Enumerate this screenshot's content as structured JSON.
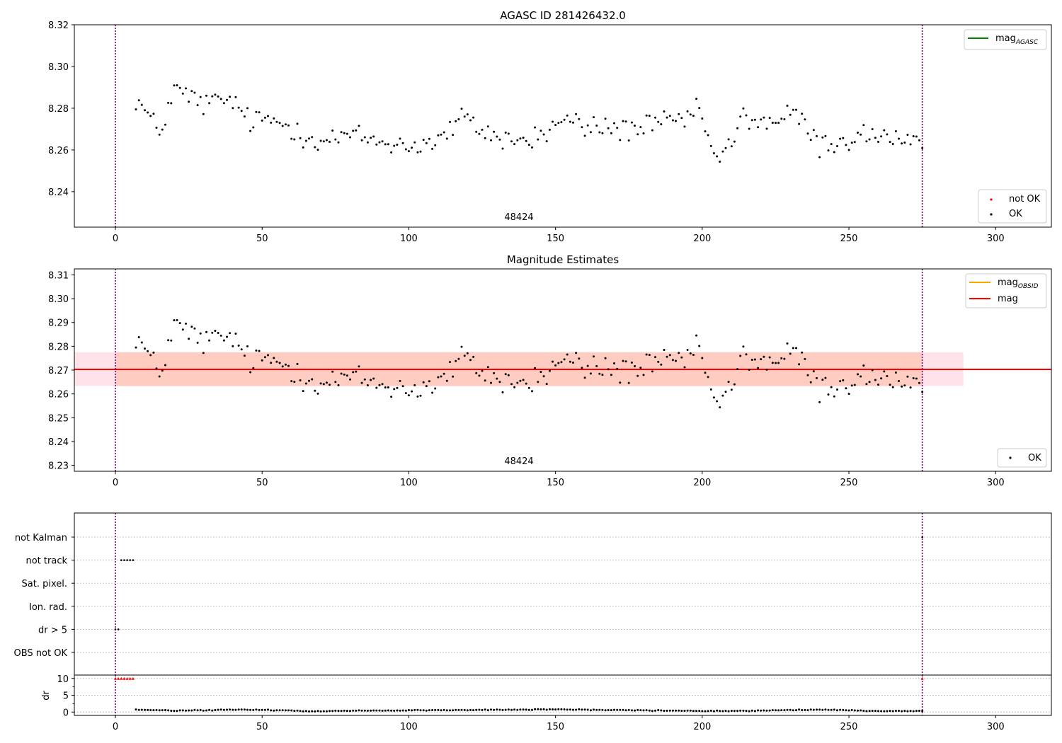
{
  "chart_data": [
    {
      "type": "scatter",
      "title": "AGASC ID 281426432.0",
      "xlim": [
        -14,
        319
      ],
      "ylim": [
        8.223,
        8.32
      ],
      "x_ticks": [
        0,
        50,
        100,
        150,
        200,
        250,
        300
      ],
      "y_ticks": [
        8.24,
        8.26,
        8.28,
        8.3,
        8.32
      ],
      "y_tick_labels": [
        "8.24",
        "8.26",
        "8.28",
        "8.30",
        "8.32"
      ],
      "vlines": [
        0,
        275
      ],
      "annotation": {
        "text": "48424",
        "x": 137,
        "y": 8.2255
      },
      "legends": [
        {
          "position": "upper right",
          "entries": [
            {
              "label": "mag",
              "sub": "AGASC",
              "color": "#008000",
              "marker": "line"
            }
          ]
        },
        {
          "position": "lower right",
          "entries": [
            {
              "label": "not OK",
              "color": "#ff0000",
              "marker": "dot"
            },
            {
              "label": "OK",
              "color": "#000000",
              "marker": "dot"
            }
          ]
        }
      ],
      "series": [
        {
          "name": "OK",
          "color": "#000000",
          "x_start": 7,
          "x_end": 275,
          "anchors": [
            [
              7,
              8.285
            ],
            [
              15,
              8.268
            ],
            [
              20,
              8.289
            ],
            [
              30,
              8.282
            ],
            [
              40,
              8.284
            ],
            [
              45,
              8.274
            ],
            [
              55,
              8.274
            ],
            [
              70,
              8.264
            ],
            [
              80,
              8.267
            ],
            [
              90,
              8.264
            ],
            [
              100,
              8.262
            ],
            [
              110,
              8.264
            ],
            [
              118,
              8.275
            ],
            [
              130,
              8.266
            ],
            [
              140,
              8.264
            ],
            [
              148,
              8.269
            ],
            [
              152,
              8.275
            ],
            [
              160,
              8.271
            ],
            [
              175,
              8.27
            ],
            [
              185,
              8.272
            ],
            [
              195,
              8.275
            ],
            [
              200,
              8.278
            ],
            [
              204,
              8.255
            ],
            [
              210,
              8.262
            ],
            [
              214,
              8.276
            ],
            [
              222,
              8.273
            ],
            [
              232,
              8.277
            ],
            [
              240,
              8.262
            ],
            [
              250,
              8.265
            ],
            [
              260,
              8.268
            ],
            [
              270,
              8.262
            ],
            [
              275,
              8.261
            ]
          ],
          "jitter": 0.006
        }
      ]
    },
    {
      "type": "scatter",
      "title": "Magnitude Estimates",
      "xlim": [
        -14,
        319
      ],
      "ylim": [
        8.2275,
        8.3125
      ],
      "x_ticks": [
        0,
        50,
        100,
        150,
        200,
        250,
        300
      ],
      "y_ticks": [
        8.23,
        8.24,
        8.25,
        8.26,
        8.27,
        8.28,
        8.29,
        8.3,
        8.31
      ],
      "y_tick_labels": [
        "8.23",
        "8.24",
        "8.25",
        "8.26",
        "8.27",
        "8.28",
        "8.29",
        "8.30",
        "8.31"
      ],
      "vlines": [
        0,
        275
      ],
      "annotation": {
        "text": "48424",
        "x": 137,
        "y": 8.2285
      },
      "hlines": [
        {
          "name": "mag_obsid",
          "y": 8.2703,
          "x0": -14,
          "x1": 289,
          "color": "#ffa500"
        },
        {
          "name": "mag",
          "y": 8.2703,
          "x0": -14,
          "x1": 319,
          "color": "#ff0000"
        }
      ],
      "bands": [
        {
          "y0": 8.2633,
          "y1": 8.2775,
          "x0": -14,
          "x1": 289,
          "color": "#ffc0cb",
          "opacity": 0.45
        },
        {
          "y0": 8.2633,
          "y1": 8.2775,
          "x0": 0,
          "x1": 275,
          "color": "#ffa07a",
          "opacity": 0.35
        }
      ],
      "legends": [
        {
          "position": "upper right",
          "entries": [
            {
              "label": "mag",
              "sub": "OBSID",
              "color": "#ffa500",
              "marker": "line"
            },
            {
              "label": "mag",
              "color": "#ff0000",
              "marker": "line"
            }
          ]
        },
        {
          "position": "lower right",
          "entries": [
            {
              "label": "OK",
              "color": "#000000",
              "marker": "dot"
            }
          ]
        }
      ]
    },
    {
      "type": "scatter",
      "title": "",
      "xlim": [
        -14,
        319
      ],
      "x_ticks": [
        0,
        50,
        100,
        150,
        200,
        250,
        300
      ],
      "flag_categories": [
        "not Kalman",
        "not track",
        "Sat. pixel.",
        "Ion. rad.",
        "dr > 5",
        "OBS not OK"
      ],
      "flag_points": [
        {
          "flag": "not track",
          "x": [
            2,
            3,
            4,
            5,
            6
          ],
          "color": "#000000"
        },
        {
          "flag": "dr > 5",
          "x": [
            0,
            1
          ],
          "color": "#000000"
        },
        {
          "flag": "not Kalman",
          "x": [
            275
          ],
          "color": "#000000"
        }
      ],
      "vlines": [
        0,
        275
      ]
    },
    {
      "type": "scatter",
      "title": "",
      "ylabel": "dr",
      "xlim": [
        -14,
        319
      ],
      "ylim": [
        -1,
        11
      ],
      "x_ticks": [
        0,
        50,
        100,
        150,
        200,
        250,
        300
      ],
      "x_tick_labels": [
        "0",
        "50",
        "100",
        "150",
        "200",
        "250",
        "300"
      ],
      "y_ticks": [
        0,
        5,
        10
      ],
      "y_tick_labels": [
        "0",
        "5",
        "10"
      ],
      "vlines": [
        0,
        275
      ],
      "clipped_points": {
        "value": 10,
        "x": [
          0,
          1,
          2,
          3,
          4,
          5,
          6,
          275
        ],
        "color": "#ff0000"
      },
      "series": [
        {
          "name": "dr",
          "color": "#000000",
          "x_start": 7,
          "x_end": 275,
          "anchors": [
            [
              7,
              0.7
            ],
            [
              20,
              0.4
            ],
            [
              40,
              0.7
            ],
            [
              60,
              0.5
            ],
            [
              65,
              0.2
            ],
            [
              80,
              0.4
            ],
            [
              120,
              0.6
            ],
            [
              150,
              0.8
            ],
            [
              180,
              0.5
            ],
            [
              200,
              0.3
            ],
            [
              220,
              0.4
            ],
            [
              240,
              0.7
            ],
            [
              260,
              0.3
            ],
            [
              275,
              0.3
            ]
          ],
          "jitter": 0.12
        }
      ]
    }
  ]
}
